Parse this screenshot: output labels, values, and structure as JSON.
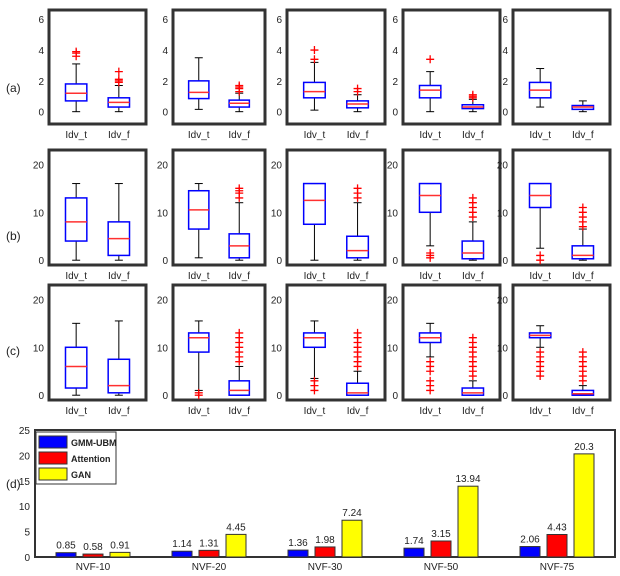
{
  "row_labels": [
    "(a)",
    "(b)",
    "(c)",
    "(d)"
  ],
  "chart_data": [
    {
      "type": "boxplot",
      "row": "(a)",
      "ylim": [
        -0.8,
        6.6
      ],
      "yticks": [
        0,
        2,
        4,
        6
      ],
      "categories": [
        "Idv_t",
        "Idv_f"
      ],
      "panels": [
        [
          {
            "lo": 0,
            "q1": 0.7,
            "med": 1.2,
            "q3": 1.8,
            "hi": 3.1,
            "out": [
              3.6,
              3.8,
              3.9
            ]
          },
          {
            "lo": 0,
            "q1": 0.3,
            "med": 0.6,
            "q3": 0.9,
            "hi": 1.7,
            "out": [
              1.9,
              2.0,
              2.1,
              2.6
            ]
          }
        ],
        [
          {
            "lo": 0.15,
            "q1": 0.85,
            "med": 1.25,
            "q3": 2.0,
            "hi": 3.5,
            "out": []
          },
          {
            "lo": 0,
            "q1": 0.3,
            "med": 0.55,
            "q3": 0.75,
            "hi": 1.2,
            "out": [
              1.3,
              1.5,
              1.6,
              1.7
            ]
          }
        ],
        [
          {
            "lo": 0.1,
            "q1": 0.9,
            "med": 1.3,
            "q3": 1.9,
            "hi": 3.2,
            "out": [
              3.4,
              4.0
            ]
          },
          {
            "lo": 0,
            "q1": 0.25,
            "med": 0.5,
            "q3": 0.7,
            "hi": 1.1,
            "out": [
              1.3,
              1.5
            ]
          }
        ],
        [
          {
            "lo": 0,
            "q1": 0.9,
            "med": 1.4,
            "q3": 1.7,
            "hi": 2.6,
            "out": [
              3.4
            ]
          },
          {
            "lo": 0,
            "q1": 0.2,
            "med": 0.3,
            "q3": 0.45,
            "hi": 0.8,
            "out": [
              0.9,
              1.0,
              1.1
            ]
          }
        ],
        [
          {
            "lo": 0.3,
            "q1": 0.9,
            "med": 1.4,
            "q3": 1.9,
            "hi": 2.8,
            "out": []
          },
          {
            "lo": 0,
            "q1": 0.15,
            "med": 0.3,
            "q3": 0.4,
            "hi": 0.7,
            "out": []
          }
        ]
      ]
    },
    {
      "type": "boxplot",
      "row": "(b)",
      "ylim": [
        -1,
        23
      ],
      "yticks": [
        0,
        10,
        20
      ],
      "categories": [
        "Idv_t",
        "Idv_f"
      ],
      "panels": [
        [
          {
            "lo": 0,
            "q1": 4,
            "med": 8,
            "q3": 13,
            "hi": 16,
            "out": []
          },
          {
            "lo": 0,
            "q1": 1,
            "med": 4.5,
            "q3": 8,
            "hi": 16,
            "out": []
          }
        ],
        [
          {
            "lo": 0.5,
            "q1": 6.5,
            "med": 10.5,
            "q3": 14.5,
            "hi": 16,
            "out": []
          },
          {
            "lo": 0,
            "q1": 0.5,
            "med": 3,
            "q3": 5.5,
            "hi": 12,
            "out": [
              13,
              14,
              14.5,
              15
            ]
          }
        ],
        [
          {
            "lo": 0,
            "q1": 7.5,
            "med": 12.5,
            "q3": 16,
            "hi": 16,
            "out": []
          },
          {
            "lo": 0,
            "q1": 0.5,
            "med": 2,
            "q3": 5,
            "hi": 12,
            "out": [
              13,
              14,
              15
            ]
          }
        ],
        [
          {
            "lo": 3,
            "q1": 10,
            "med": 13.5,
            "q3": 16,
            "hi": 16,
            "out": [
              0.5,
              1,
              1.5
            ]
          },
          {
            "lo": 0,
            "q1": 0.3,
            "med": 1.5,
            "q3": 4,
            "hi": 8,
            "out": [
              9,
              10,
              11,
              12,
              13
            ]
          }
        ],
        [
          {
            "lo": 2.5,
            "q1": 11,
            "med": 13.5,
            "q3": 16,
            "hi": 16,
            "out": [
              0,
              1
            ]
          },
          {
            "lo": 0,
            "q1": 0.3,
            "med": 1,
            "q3": 3,
            "hi": 6.5,
            "out": [
              7,
              8,
              9,
              10,
              11
            ]
          }
        ]
      ]
    },
    {
      "type": "boxplot",
      "row": "(c)",
      "ylim": [
        -1,
        23
      ],
      "yticks": [
        0,
        10,
        20
      ],
      "categories": [
        "Idv_t",
        "Idv_f"
      ],
      "panels": [
        [
          {
            "lo": 0,
            "q1": 1.5,
            "med": 6,
            "q3": 10,
            "hi": 15,
            "out": []
          },
          {
            "lo": 0,
            "q1": 0.5,
            "med": 2,
            "q3": 7.5,
            "hi": 15.5,
            "out": []
          }
        ],
        [
          {
            "lo": 1,
            "q1": 9,
            "med": 12,
            "q3": 13,
            "hi": 15.5,
            "out": [
              0,
              0.5
            ]
          },
          {
            "lo": 0,
            "q1": 0,
            "med": 1,
            "q3": 3,
            "hi": 6,
            "out": [
              7,
              8,
              9,
              10,
              11,
              12,
              13
            ]
          }
        ],
        [
          {
            "lo": 3.5,
            "q1": 10,
            "med": 12,
            "q3": 13,
            "hi": 15.5,
            "out": [
              1,
              2,
              3
            ]
          },
          {
            "lo": 0,
            "q1": 0,
            "med": 0.5,
            "q3": 2.5,
            "hi": 5,
            "out": [
              6,
              7,
              8,
              9,
              10,
              11,
              12,
              13
            ]
          }
        ],
        [
          {
            "lo": 8,
            "q1": 11,
            "med": 12,
            "q3": 13,
            "hi": 15,
            "out": [
              1,
              2,
              3,
              5,
              6,
              7
            ]
          },
          {
            "lo": 0,
            "q1": 0,
            "med": 0.5,
            "q3": 1.5,
            "hi": 3,
            "out": [
              4,
              5,
              6,
              7,
              8,
              9,
              10,
              11,
              12
            ]
          }
        ],
        [
          {
            "lo": 10,
            "q1": 12,
            "med": 12.5,
            "q3": 13,
            "hi": 14.5,
            "out": [
              4,
              5,
              6,
              7,
              8,
              9
            ]
          },
          {
            "lo": 0,
            "q1": 0,
            "med": 0.3,
            "q3": 1,
            "hi": 2,
            "out": [
              3,
              4,
              5,
              6,
              7,
              8,
              9
            ]
          }
        ]
      ]
    },
    {
      "type": "bar",
      "row": "(d)",
      "ylim": [
        0,
        25
      ],
      "yticks": [
        0,
        5,
        10,
        15,
        20,
        25
      ],
      "legend": "top-left",
      "categories": [
        "NVF-10",
        "NVF-20",
        "NVF-30",
        "NVF-50",
        "NVF-75"
      ],
      "series": [
        {
          "name": "GMM-UBM",
          "color": "#0000ff",
          "values": [
            0.85,
            1.14,
            1.36,
            1.74,
            2.06
          ]
        },
        {
          "name": "Attention",
          "color": "#ff0000",
          "values": [
            0.58,
            1.31,
            1.98,
            3.15,
            4.43
          ]
        },
        {
          "name": "GAN",
          "color": "#ffff00",
          "values": [
            0.91,
            4.45,
            7.24,
            13.94,
            20.3
          ]
        }
      ]
    }
  ]
}
